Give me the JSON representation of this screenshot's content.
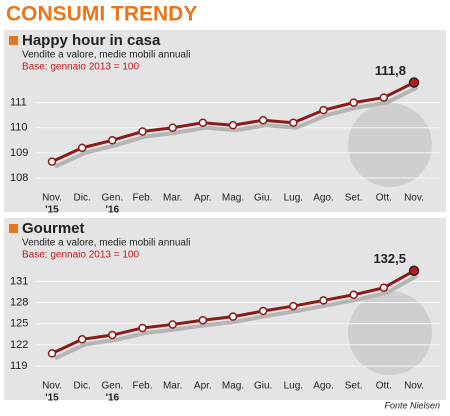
{
  "header": "CONSUMI TRENDY",
  "source": "Fonte Nielsen",
  "chart_data": [
    {
      "type": "line",
      "title": "Happy hour in casa",
      "subtitle": "Vendite a valore, medie mobili annuali",
      "base": "Base: gennaio 2013 = 100",
      "categories": [
        "Nov.",
        "Dic.",
        "Gen.",
        "Feb.",
        "Mar.",
        "Apr.",
        "Mag.",
        "Giu.",
        "Lug.",
        "Ago.",
        "Set.",
        "Ott.",
        "Nov."
      ],
      "year_labels": [
        "'15",
        null,
        "'16",
        null,
        null,
        null,
        null,
        null,
        null,
        null,
        null,
        null,
        null
      ],
      "values": [
        108.65,
        109.2,
        109.5,
        109.85,
        110.0,
        110.2,
        110.1,
        110.3,
        110.2,
        110.7,
        111.0,
        111.2,
        111.8
      ],
      "value_labels": [
        null,
        null,
        null,
        null,
        null,
        null,
        null,
        null,
        null,
        null,
        null,
        null,
        "111,8"
      ],
      "color": "#8b1a1a",
      "ylim": [
        107.6,
        112.1
      ],
      "yticks": [
        108,
        109,
        110,
        111
      ],
      "grid": true
    },
    {
      "type": "line",
      "title": "Gourmet",
      "subtitle": "Vendite a valore, medie mobili annuali",
      "base": "Base: gennaio 2013 = 100",
      "categories": [
        "Nov.",
        "Dic.",
        "Gen.",
        "Feb.",
        "Mar.",
        "Apr.",
        "Mag.",
        "Giu.",
        "Lug.",
        "Ago.",
        "Set.",
        "Ott.",
        "Nov."
      ],
      "year_labels": [
        "'15",
        null,
        "'16",
        null,
        null,
        null,
        null,
        null,
        null,
        null,
        null,
        null,
        null
      ],
      "values": [
        120.8,
        122.8,
        123.4,
        124.4,
        124.9,
        125.5,
        126.0,
        126.8,
        127.5,
        128.3,
        129.1,
        130.1,
        132.5
      ],
      "value_labels": [
        null,
        null,
        null,
        null,
        null,
        null,
        null,
        null,
        null,
        null,
        null,
        null,
        "132,5"
      ],
      "color": "#8b1a1a",
      "ylim": [
        117.6,
        133.6
      ],
      "yticks": [
        119,
        122,
        125,
        128,
        131
      ],
      "grid": true
    }
  ]
}
